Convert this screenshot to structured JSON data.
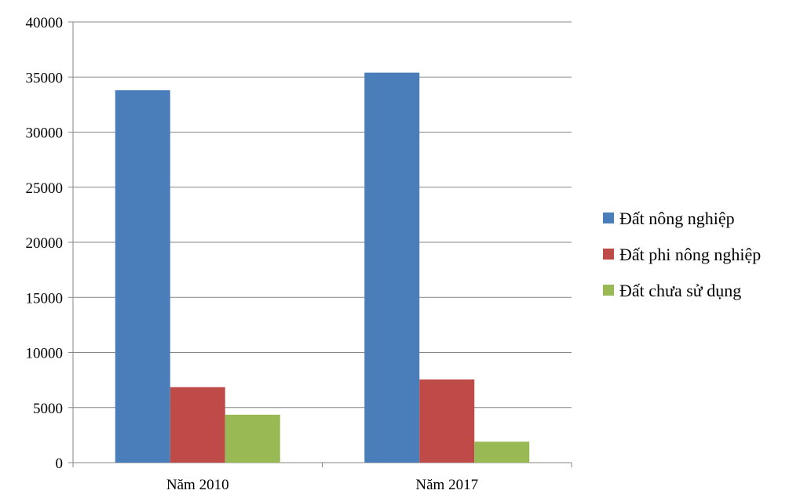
{
  "chart_data": {
    "type": "bar",
    "categories": [
      "Năm 2010",
      "Năm 2017"
    ],
    "series": [
      {
        "name": "Đất nông nghiệp",
        "color": "#4a7ebb",
        "values": [
          33800,
          35400
        ]
      },
      {
        "name": "Đất phi nông nghiệp",
        "color": "#be4b48",
        "values": [
          6850,
          7550
        ]
      },
      {
        "name": "Đất chưa sử dụng",
        "color": "#98b954",
        "values": [
          4350,
          1900
        ]
      }
    ],
    "yticks": [
      "0",
      "5000",
      "10000",
      "15000",
      "20000",
      "25000",
      "30000",
      "35000",
      "40000"
    ],
    "ylim": [
      0,
      40000
    ],
    "grid": true,
    "legend_position": "right"
  }
}
